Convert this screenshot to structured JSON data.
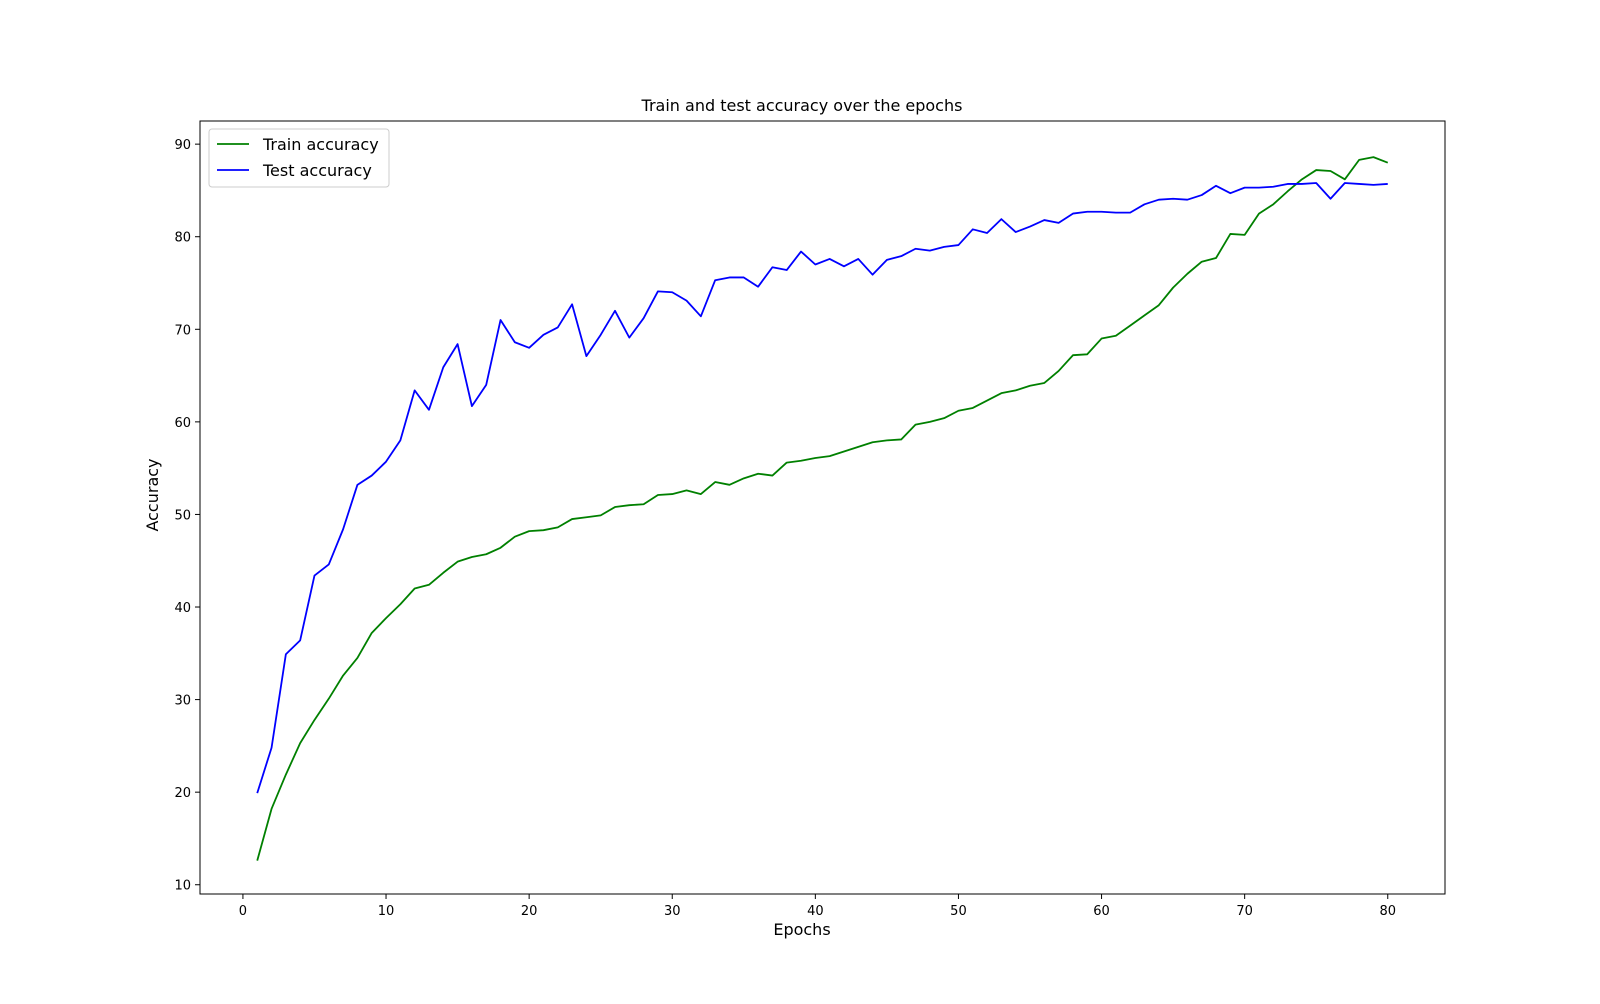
{
  "chart_data": {
    "type": "line",
    "title": "Train and test accuracy over the epochs",
    "xlabel": "Epochs",
    "ylabel": "Accuracy",
    "xlim": [
      -3,
      84
    ],
    "ylim": [
      9,
      92.5
    ],
    "xticks": [
      0,
      10,
      20,
      30,
      40,
      50,
      60,
      70,
      80
    ],
    "yticks": [
      10,
      20,
      30,
      40,
      50,
      60,
      70,
      80,
      90
    ],
    "grid": false,
    "legend_position": "top-left",
    "x": [
      1,
      2,
      3,
      4,
      5,
      6,
      7,
      8,
      9,
      10,
      11,
      12,
      13,
      14,
      15,
      16,
      17,
      18,
      19,
      20,
      21,
      22,
      23,
      24,
      25,
      26,
      27,
      28,
      29,
      30,
      31,
      32,
      33,
      34,
      35,
      36,
      37,
      38,
      39,
      40,
      41,
      42,
      43,
      44,
      45,
      46,
      47,
      48,
      49,
      50,
      51,
      52,
      53,
      54,
      55,
      56,
      57,
      58,
      59,
      60,
      61,
      62,
      63,
      64,
      65,
      66,
      67,
      68,
      69,
      70,
      71,
      72,
      73,
      74,
      75,
      76,
      77,
      78,
      79,
      80
    ],
    "series": [
      {
        "name": "Train accuracy",
        "color": "#008000",
        "values": [
          12.6,
          18.2,
          21.9,
          25.3,
          27.8,
          30.1,
          32.6,
          34.5,
          37.2,
          38.8,
          40.3,
          42.0,
          42.4,
          43.7,
          44.9,
          45.4,
          45.7,
          46.4,
          47.6,
          48.2,
          48.3,
          48.6,
          49.5,
          49.7,
          49.9,
          50.8,
          51.0,
          51.1,
          52.1,
          52.2,
          52.6,
          52.2,
          53.5,
          53.2,
          53.9,
          54.4,
          54.2,
          55.6,
          55.8,
          56.1,
          56.3,
          56.8,
          57.3,
          57.8,
          58.0,
          58.1,
          59.7,
          60.0,
          60.4,
          61.2,
          61.5,
          62.3,
          63.1,
          63.4,
          63.9,
          64.2,
          65.5,
          67.2,
          67.3,
          69.0,
          69.3,
          70.4,
          71.5,
          72.6,
          74.5,
          76.0,
          77.3,
          77.7,
          80.3,
          80.2,
          82.5,
          83.5,
          84.9,
          86.2,
          87.2,
          87.1,
          86.2,
          88.3,
          88.6,
          88.0
        ]
      },
      {
        "name": "Test accuracy",
        "color": "#0000ff",
        "values": [
          19.9,
          24.8,
          34.9,
          36.4,
          43.4,
          44.6,
          48.4,
          53.2,
          54.2,
          55.7,
          58.0,
          63.4,
          61.3,
          65.9,
          68.4,
          61.7,
          64.0,
          71.0,
          68.6,
          68.0,
          69.4,
          70.2,
          72.7,
          67.1,
          69.4,
          72.0,
          69.1,
          71.2,
          74.1,
          74.0,
          73.1,
          71.4,
          75.3,
          75.6,
          75.6,
          74.6,
          76.7,
          76.4,
          78.4,
          77.0,
          77.6,
          76.8,
          77.6,
          75.9,
          77.5,
          77.9,
          78.7,
          78.5,
          78.9,
          79.1,
          80.8,
          80.4,
          81.9,
          80.5,
          81.1,
          81.8,
          81.5,
          82.5,
          82.7,
          82.7,
          82.6,
          82.6,
          83.5,
          84.0,
          84.1,
          84.0,
          84.5,
          85.5,
          84.7,
          85.3,
          85.3,
          85.4,
          85.7,
          85.7,
          85.8,
          84.1,
          85.8,
          85.7,
          85.6,
          85.7
        ]
      }
    ]
  }
}
